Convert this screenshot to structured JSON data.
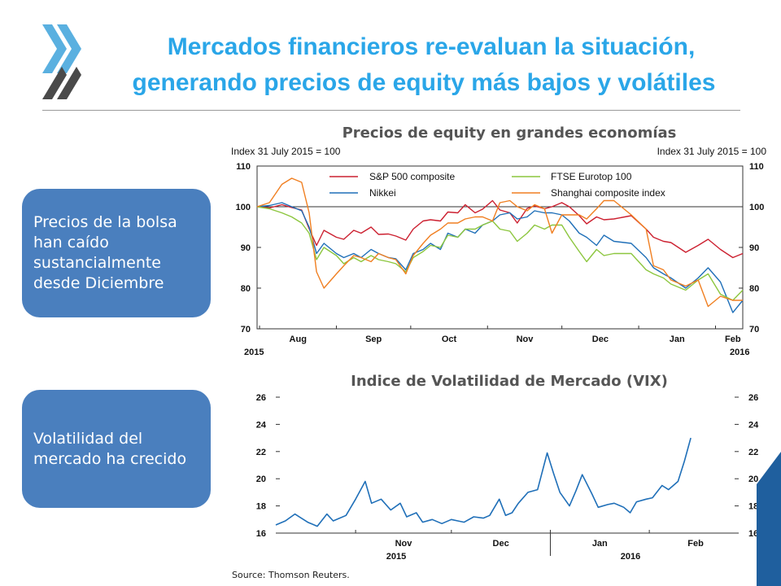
{
  "slide": {
    "title_line1": "Mercados financieros re-evaluan la situación,",
    "title_line2": "generando precios de equity más bajos y volátiles",
    "callout1": "Precios de la bolsa han caído sustancialmente desde Diciembre",
    "callout2": "Volatilidad del mercado ha crecido",
    "source": "Source: Thomson Reuters.",
    "colors": {
      "title": "#2aa6e8",
      "callout_bg": "#4a7fbe",
      "logo": "#4a4a4a",
      "logo_accent": "#5ab0e0"
    },
    "logo_icon": "oecd-chevrons-icon"
  },
  "chart_data": [
    {
      "type": "line",
      "title": "Precios de equity en grandes economías",
      "ylabel_left": "Index 31 July 2015 = 100",
      "ylabel_right": "Index 31 July 2015 = 100",
      "ylim": [
        70,
        110
      ],
      "yticks": [
        70,
        80,
        90,
        100,
        110
      ],
      "reference_line": 100,
      "x_range": [
        "2015-07-31",
        "2016-02-12"
      ],
      "xticks": [
        "Aug",
        "Sep",
        "Oct",
        "Nov",
        "Dec",
        "Jan",
        "Feb"
      ],
      "year_labels": [
        "2015",
        "2016"
      ],
      "legend_position": "top",
      "series": [
        {
          "name": "S&P 500 composite",
          "color": "#cc2030",
          "x": [
            "2015-07-31",
            "2015-08-05",
            "2015-08-10",
            "2015-08-14",
            "2015-08-18",
            "2015-08-21",
            "2015-08-24",
            "2015-08-27",
            "2015-09-01",
            "2015-09-04",
            "2015-09-08",
            "2015-09-11",
            "2015-09-15",
            "2015-09-18",
            "2015-09-22",
            "2015-09-25",
            "2015-09-29",
            "2015-10-02",
            "2015-10-06",
            "2015-10-09",
            "2015-10-13",
            "2015-10-16",
            "2015-10-20",
            "2015-10-23",
            "2015-10-27",
            "2015-10-30",
            "2015-11-03",
            "2015-11-06",
            "2015-11-10",
            "2015-11-13",
            "2015-11-17",
            "2015-11-20",
            "2015-11-24",
            "2015-11-27",
            "2015-12-01",
            "2015-12-04",
            "2015-12-08",
            "2015-12-11",
            "2015-12-15",
            "2015-12-18",
            "2015-12-22",
            "2015-12-29",
            "2016-01-04",
            "2016-01-07",
            "2016-01-11",
            "2016-01-14",
            "2016-01-20",
            "2016-01-25",
            "2016-01-29",
            "2016-02-03",
            "2016-02-08",
            "2016-02-12"
          ],
          "y": [
            100,
            99.7,
            100.5,
            99.8,
            99.2,
            94.6,
            90.5,
            94.2,
            92.5,
            92,
            94.2,
            93.5,
            95,
            93.2,
            93.3,
            92.8,
            91.8,
            94.5,
            96.5,
            96.8,
            96.5,
            98.7,
            98.5,
            100.5,
            98.5,
            99.4,
            101.5,
            99.2,
            98.5,
            96,
            99.6,
            100.2,
            99.5,
            100,
            101,
            100,
            97.8,
            95.8,
            97.5,
            96.8,
            97,
            97.8,
            94.5,
            92.5,
            91.5,
            91.2,
            88.8,
            90.5,
            92,
            89.5,
            87.5,
            88.5
          ]
        },
        {
          "name": "Nikkei",
          "color": "#1f6fb8",
          "x": [
            "2015-07-31",
            "2015-08-05",
            "2015-08-10",
            "2015-08-14",
            "2015-08-18",
            "2015-08-21",
            "2015-08-24",
            "2015-08-27",
            "2015-09-01",
            "2015-09-04",
            "2015-09-08",
            "2015-09-11",
            "2015-09-15",
            "2015-09-18",
            "2015-09-22",
            "2015-09-25",
            "2015-09-29",
            "2015-10-02",
            "2015-10-06",
            "2015-10-09",
            "2015-10-13",
            "2015-10-16",
            "2015-10-20",
            "2015-10-23",
            "2015-10-27",
            "2015-10-30",
            "2015-11-03",
            "2015-11-06",
            "2015-11-10",
            "2015-11-13",
            "2015-11-17",
            "2015-11-20",
            "2015-11-24",
            "2015-11-27",
            "2015-12-01",
            "2015-12-04",
            "2015-12-08",
            "2015-12-11",
            "2015-12-15",
            "2015-12-18",
            "2015-12-22",
            "2015-12-29",
            "2016-01-04",
            "2016-01-07",
            "2016-01-11",
            "2016-01-14",
            "2016-01-20",
            "2016-01-25",
            "2016-01-29",
            "2016-02-03",
            "2016-02-08",
            "2016-02-12"
          ],
          "y": [
            100,
            100.3,
            101,
            100,
            99,
            95,
            88.5,
            91,
            88.5,
            87.5,
            88.5,
            87.5,
            89.5,
            88.5,
            87.5,
            87.2,
            84.5,
            88.5,
            89.5,
            91,
            89.5,
            93.5,
            92.5,
            94.5,
            93.5,
            95.5,
            96.5,
            98,
            98.5,
            97,
            97.5,
            99,
            98.5,
            98.5,
            98,
            96.5,
            93.5,
            92.5,
            90.5,
            93,
            91.5,
            91,
            87.5,
            85,
            83.5,
            82.5,
            80,
            82.5,
            85,
            81.5,
            74,
            77
          ]
        },
        {
          "name": "FTSE Eurotop 100",
          "color": "#8cc63e",
          "x": [
            "2015-07-31",
            "2015-08-05",
            "2015-08-10",
            "2015-08-14",
            "2015-08-18",
            "2015-08-21",
            "2015-08-24",
            "2015-08-27",
            "2015-09-01",
            "2015-09-04",
            "2015-09-08",
            "2015-09-11",
            "2015-09-15",
            "2015-09-18",
            "2015-09-22",
            "2015-09-25",
            "2015-09-29",
            "2015-10-02",
            "2015-10-06",
            "2015-10-09",
            "2015-10-13",
            "2015-10-16",
            "2015-10-20",
            "2015-10-23",
            "2015-10-27",
            "2015-10-30",
            "2015-11-03",
            "2015-11-06",
            "2015-11-10",
            "2015-11-13",
            "2015-11-17",
            "2015-11-20",
            "2015-11-24",
            "2015-11-27",
            "2015-12-01",
            "2015-12-04",
            "2015-12-08",
            "2015-12-11",
            "2015-12-15",
            "2015-12-18",
            "2015-12-22",
            "2015-12-29",
            "2016-01-04",
            "2016-01-07",
            "2016-01-11",
            "2016-01-14",
            "2016-01-20",
            "2016-01-25",
            "2016-01-29",
            "2016-02-03",
            "2016-02-08",
            "2016-02-12"
          ],
          "y": [
            100,
            99.5,
            98.5,
            97.5,
            96,
            93.5,
            87,
            90,
            88,
            86,
            87.5,
            86.5,
            88,
            87,
            86.5,
            86,
            84,
            87.5,
            89,
            90.5,
            90,
            93,
            92.5,
            94.5,
            94.5,
            95.5,
            96.5,
            94.5,
            94,
            91.5,
            93.5,
            95.5,
            94.5,
            95.5,
            95.5,
            92.5,
            89,
            86.5,
            89.5,
            88,
            88.5,
            88.5,
            84.5,
            83.5,
            82.5,
            81,
            79.5,
            82,
            83.5,
            78.5,
            77,
            79.5
          ]
        },
        {
          "name": "Shanghai composite index",
          "color": "#f07f21",
          "x": [
            "2015-07-31",
            "2015-08-05",
            "2015-08-10",
            "2015-08-14",
            "2015-08-18",
            "2015-08-21",
            "2015-08-24",
            "2015-08-27",
            "2015-09-01",
            "2015-09-04",
            "2015-09-08",
            "2015-09-11",
            "2015-09-15",
            "2015-09-18",
            "2015-09-22",
            "2015-09-25",
            "2015-09-29",
            "2015-10-02",
            "2015-10-06",
            "2015-10-09",
            "2015-10-13",
            "2015-10-16",
            "2015-10-20",
            "2015-10-23",
            "2015-10-27",
            "2015-10-30",
            "2015-11-03",
            "2015-11-06",
            "2015-11-10",
            "2015-11-13",
            "2015-11-17",
            "2015-11-20",
            "2015-11-24",
            "2015-11-27",
            "2015-12-01",
            "2015-12-04",
            "2015-12-08",
            "2015-12-11",
            "2015-12-15",
            "2015-12-18",
            "2015-12-22",
            "2015-12-29",
            "2016-01-04",
            "2016-01-07",
            "2016-01-11",
            "2016-01-14",
            "2016-01-20",
            "2016-01-25",
            "2016-01-29",
            "2016-02-03",
            "2016-02-08",
            "2016-02-12"
          ],
          "y": [
            100,
            101,
            105.5,
            107,
            106,
            98.5,
            84,
            80,
            83.5,
            85.5,
            88,
            87.5,
            86.5,
            88.5,
            87.5,
            87,
            83.5,
            88,
            91,
            93,
            94.5,
            96,
            96,
            97,
            97.5,
            97.5,
            96.5,
            101,
            101.5,
            100,
            99,
            100.5,
            99.5,
            93.5,
            98,
            98,
            98,
            97,
            99.5,
            101.5,
            101.5,
            98,
            94.5,
            85.5,
            84.5,
            82,
            80.5,
            82,
            75.5,
            78,
            77,
            77
          ]
        }
      ]
    },
    {
      "type": "line",
      "title": "Indice de Volatilidad de Mercado (VIX)",
      "ylim": [
        16,
        26
      ],
      "yticks": [
        16,
        18,
        20,
        22,
        24,
        26
      ],
      "x_range": [
        "2015-10-07",
        "2016-02-29"
      ],
      "xticks": [
        "Nov",
        "Dec",
        "Jan",
        "Feb"
      ],
      "year_labels": [
        "2015",
        "2016"
      ],
      "series": [
        {
          "name": "VIX",
          "color": "#1f6fb8",
          "x": [
            "2015-10-07",
            "2015-10-10",
            "2015-10-13",
            "2015-10-17",
            "2015-10-20",
            "2015-10-23",
            "2015-10-25",
            "2015-10-29",
            "2015-11-01",
            "2015-11-04",
            "2015-11-06",
            "2015-11-09",
            "2015-11-12",
            "2015-11-15",
            "2015-11-17",
            "2015-11-20",
            "2015-11-22",
            "2015-11-25",
            "2015-11-28",
            "2015-12-01",
            "2015-12-03",
            "2015-12-05",
            "2015-12-08",
            "2015-12-11",
            "2015-12-13",
            "2015-12-16",
            "2015-12-18",
            "2015-12-20",
            "2015-12-22",
            "2015-12-25",
            "2015-12-28",
            "2015-12-31",
            "2016-01-02",
            "2016-01-04",
            "2016-01-07",
            "2016-01-09",
            "2016-01-11",
            "2016-01-14",
            "2016-01-16",
            "2016-01-19",
            "2016-01-21",
            "2016-01-24",
            "2016-01-26",
            "2016-01-28",
            "2016-01-31",
            "2016-02-02",
            "2016-02-05",
            "2016-02-07",
            "2016-02-10",
            "2016-02-12",
            "2016-02-14"
          ],
          "y": [
            16.6,
            16.9,
            17.4,
            16.8,
            16.5,
            17.4,
            16.9,
            17.3,
            18.5,
            19.8,
            18.2,
            18.5,
            17.7,
            18.2,
            17.2,
            17.5,
            16.8,
            17.0,
            16.7,
            17.0,
            16.9,
            16.8,
            17.2,
            17.1,
            17.3,
            18.5,
            17.3,
            17.5,
            18.2,
            19.0,
            19.2,
            21.9,
            20.4,
            19.0,
            18.0,
            19.1,
            20.3,
            18.9,
            17.9,
            18.1,
            18.2,
            17.9,
            17.5,
            18.3,
            18.5,
            18.6,
            19.5,
            19.2,
            19.8,
            21.3,
            23.0
          ]
        }
      ]
    }
  ]
}
